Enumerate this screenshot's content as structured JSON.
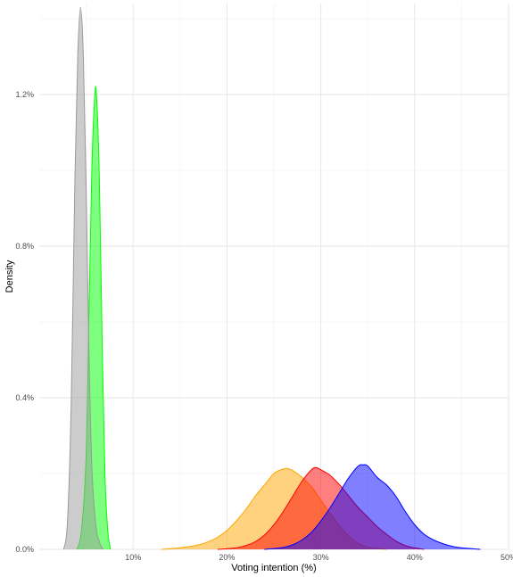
{
  "chart_data": {
    "type": "area",
    "title": "",
    "xlabel": "Voting intention (%)",
    "ylabel": "Density",
    "x_ticks": [
      10,
      20,
      30,
      40,
      50
    ],
    "x_tick_labels": [
      "10%",
      "20%",
      "30%",
      "40%",
      "50%"
    ],
    "y_ticks": [
      0,
      0.4,
      0.8,
      1.2
    ],
    "y_tick_labels": [
      "0.0%",
      "0.4%",
      "0.8%",
      "1.2%"
    ],
    "xlim": [
      0,
      50
    ],
    "ylim": [
      0,
      1.44
    ],
    "grid": true,
    "legend": "none",
    "series": [
      {
        "color": "#ffa500",
        "x": [
          13,
          15,
          17,
          18,
          19,
          20,
          21,
          22,
          23,
          24,
          25,
          26,
          26.5,
          27,
          28,
          29,
          30,
          31,
          32,
          33,
          34,
          35,
          36,
          37
        ],
        "y": [
          0,
          0.004,
          0.012,
          0.02,
          0.032,
          0.05,
          0.075,
          0.105,
          0.14,
          0.17,
          0.2,
          0.212,
          0.213,
          0.208,
          0.19,
          0.165,
          0.13,
          0.095,
          0.062,
          0.035,
          0.015,
          0.006,
          0.002,
          0
        ]
      },
      {
        "color": "#ff0000",
        "x": [
          19,
          21,
          22,
          23,
          24,
          25,
          26,
          27,
          28,
          29,
          29.5,
          30,
          31,
          32,
          33,
          34,
          35,
          36,
          37,
          38,
          39,
          40,
          41
        ],
        "y": [
          0,
          0.004,
          0.01,
          0.02,
          0.038,
          0.065,
          0.1,
          0.14,
          0.18,
          0.21,
          0.216,
          0.21,
          0.195,
          0.17,
          0.14,
          0.11,
          0.085,
          0.06,
          0.04,
          0.022,
          0.01,
          0.004,
          0
        ]
      },
      {
        "color": "#0000ff",
        "x": [
          24,
          26,
          27,
          28,
          29,
          30,
          31,
          32,
          33,
          34,
          34.5,
          35,
          36,
          37,
          38,
          39,
          40,
          41,
          42,
          43,
          44,
          45,
          46,
          47
        ],
        "y": [
          0,
          0.005,
          0.012,
          0.025,
          0.045,
          0.075,
          0.11,
          0.15,
          0.19,
          0.22,
          0.223,
          0.22,
          0.19,
          0.17,
          0.14,
          0.1,
          0.065,
          0.04,
          0.025,
          0.015,
          0.008,
          0.004,
          0.002,
          0
        ]
      },
      {
        "color": "#00ff00",
        "x": [
          4,
          4.5,
          5,
          5.3,
          5.6,
          5.9,
          6.1,
          6.4,
          6.7,
          7,
          7.3,
          7.6
        ],
        "y": [
          0,
          0.05,
          0.25,
          0.62,
          1.0,
          1.19,
          1.2,
          0.98,
          0.55,
          0.2,
          0.05,
          0
        ]
      },
      {
        "color": "#999999",
        "x": [
          2.6,
          3,
          3.4,
          3.8,
          4.1,
          4.4,
          4.7,
          5.0,
          5.3,
          5.6,
          6.0,
          6.4,
          6.8
        ],
        "y": [
          0,
          0.07,
          0.38,
          0.98,
          1.3,
          1.43,
          1.3,
          0.95,
          0.52,
          0.22,
          0.07,
          0.02,
          0
        ]
      }
    ]
  }
}
